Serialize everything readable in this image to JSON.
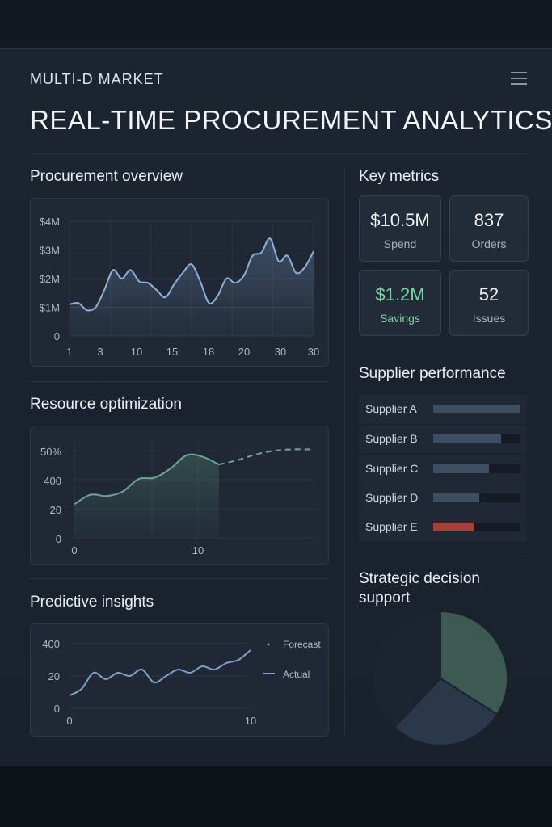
{
  "header": {
    "brand": "MULTI-D MARKET",
    "title": "REAL-TIME PROCUREMENT ANALYTICS"
  },
  "procurement_overview": {
    "heading": "Procurement overview",
    "y_ticks": [
      "$4M",
      "$3M",
      "$2M",
      "$1M",
      "0"
    ],
    "x_ticks": [
      "1",
      "3",
      "10",
      "15",
      "18",
      "20",
      "30",
      "30"
    ],
    "values": [
      1.1,
      1.15,
      0.9,
      1.0,
      1.6,
      2.3,
      2.0,
      2.3,
      1.9,
      1.85,
      1.6,
      1.35,
      1.8,
      2.2,
      2.5,
      1.9,
      1.15,
      1.4,
      2.0,
      1.85,
      2.1,
      2.8,
      2.9,
      3.4,
      2.6,
      2.8,
      2.2,
      2.4,
      2.95
    ]
  },
  "resource_optimization": {
    "heading": "Resource optimization",
    "y_ticks": [
      "50%",
      "400",
      "20",
      "0"
    ],
    "x_ticks": [
      "0",
      "10"
    ],
    "actual": [
      0.15,
      0.3,
      0.28,
      0.35,
      0.55,
      0.57,
      0.72,
      0.93,
      0.9,
      0.78
    ],
    "projection": [
      0.78,
      0.85,
      0.94,
      1.0,
      1.02,
      1.02
    ]
  },
  "predictive_insights": {
    "heading": "Predictive insights",
    "y_ticks": [
      "400",
      "20",
      "0"
    ],
    "x_ticks": [
      "0",
      "10"
    ],
    "legend": [
      "Forecast",
      "Actual"
    ],
    "values": [
      0.2,
      0.3,
      0.55,
      0.45,
      0.55,
      0.5,
      0.6,
      0.4,
      0.5,
      0.6,
      0.55,
      0.65,
      0.6,
      0.7,
      0.75,
      0.9
    ]
  },
  "key_metrics": {
    "heading": "Key metrics",
    "items": [
      {
        "value": "$10.5M",
        "label": "Spend",
        "color": "#f0f4f8"
      },
      {
        "value": "837",
        "label": "Orders",
        "color": "#f0f4f8"
      },
      {
        "value": "$1.2M",
        "label": "Savings",
        "color": "#7ed3a3"
      },
      {
        "value": "52",
        "label": "Issues",
        "color": "#f0f4f8"
      }
    ]
  },
  "supplier_performance": {
    "heading": "Supplier performance",
    "suppliers": [
      {
        "name": "Supplier A",
        "score": 1.0,
        "color": "#3e4d60"
      },
      {
        "name": "Supplier B",
        "score": 0.78,
        "color": "#3e4d60"
      },
      {
        "name": "Supplier C",
        "score": 0.64,
        "color": "#3e4d60"
      },
      {
        "name": "Supplier D",
        "score": 0.53,
        "color": "#3e4d60"
      },
      {
        "name": "Supplier E",
        "score": 0.47,
        "color": "#a6403a"
      }
    ]
  },
  "strategic": {
    "heading_line1": "Strategic decision",
    "heading_line2": "support",
    "slices": [
      {
        "share": 0.34,
        "color": "#3d5a52"
      },
      {
        "share": 0.28,
        "color": "#2b3849"
      },
      {
        "share": 0.38,
        "color": "#1c2431"
      }
    ]
  }
}
